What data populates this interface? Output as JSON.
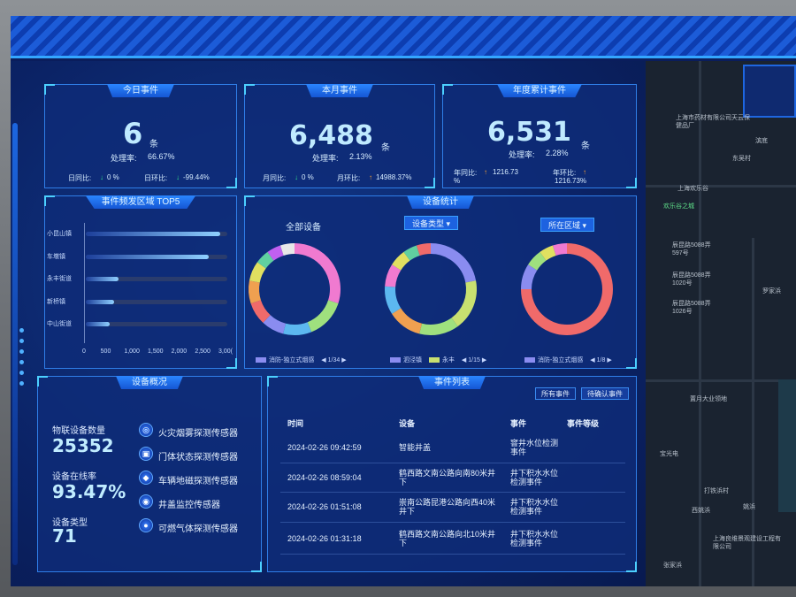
{
  "today": {
    "title": "今日事件",
    "value": "6",
    "unit": "条",
    "rate_label": "处理率:",
    "rate": "66.67%",
    "dod_label": "日同比:",
    "dod": "0 %",
    "mom_label": "日环比:",
    "mom": "-99.44%"
  },
  "month": {
    "title": "本月事件",
    "value": "6,488",
    "unit": "条",
    "rate_label": "处理率:",
    "rate": "2.13%",
    "yoy_label": "月同比:",
    "yoy": "0 %",
    "mom_label": "月环比:",
    "mom": "14988.37%"
  },
  "year": {
    "title": "年度累计事件",
    "value": "6,531",
    "unit": "条",
    "rate_label": "处理率:",
    "rate": "2.28%",
    "yoy_label": "年同比:",
    "yoy_l1": "1216.73",
    "yoy_l2": "%",
    "mom_label": "年环比:",
    "mom_l1": "1216.73%"
  },
  "top5": {
    "title": "事件频发区域 TOP5",
    "chart_data": {
      "type": "bar",
      "orientation": "horizontal",
      "categories": [
        "小昆山镇",
        "车墩镇",
        "永丰街道",
        "新桥镇",
        "中山街道"
      ],
      "values": [
        2850,
        2600,
        700,
        600,
        500
      ],
      "xlim": [
        0,
        3000
      ],
      "ticks": [
        "0",
        "500",
        "1,000",
        "1,500",
        "2,000",
        "2,500",
        "3,00("
      ]
    }
  },
  "devices_stats": {
    "title": "设备统计",
    "all_label": "全部设备",
    "type_dropdown": "设备类型",
    "area_dropdown": "所在区域",
    "chart_data": [
      {
        "type": "pie",
        "variant": "donut",
        "slices": [
          30,
          14,
          10,
          8,
          8,
          8,
          7,
          5,
          5,
          5
        ],
        "colors": [
          "#f07ad0",
          "#9fe07e",
          "#5cb8f0",
          "#8a8cf0",
          "#f06a6a",
          "#f0a050",
          "#e0e060",
          "#60d0a0",
          "#c060f0",
          "#e8e8e8"
        ]
      },
      {
        "type": "pie",
        "variant": "donut",
        "slices": [
          22,
          18,
          14,
          12,
          10,
          8,
          6,
          5,
          5
        ],
        "colors": [
          "#8a8cf0",
          "#c8e070",
          "#9fe07e",
          "#f0a050",
          "#5cb8f0",
          "#f07ad0",
          "#e0e060",
          "#60d0a0",
          "#f06a6a"
        ]
      },
      {
        "type": "pie",
        "variant": "donut",
        "slices": [
          75,
          9,
          6,
          5,
          5
        ],
        "colors": [
          "#f06a6a",
          "#8a8cf0",
          "#9fe07e",
          "#e0e060",
          "#f07ad0"
        ]
      }
    ],
    "legend1": {
      "label": "消防-独立式烟感",
      "page": "1/34"
    },
    "legend2": {
      "label1": "泗泾镇",
      "label2": "永丰",
      "page": "1/15"
    },
    "legend3": {
      "label": "消防-独立式烟感",
      "page": "1/8"
    }
  },
  "overview": {
    "title": "设备概况",
    "connected_label": "物联设备数量",
    "connected": "25352",
    "online_label": "设备在线率",
    "online": "93.47%",
    "types_label": "设备类型",
    "types": "71",
    "sensors": [
      "火灾烟雾探测传感器",
      "门体状态探测传感器",
      "车辆地磁探测传感器",
      "井盖监控传感器",
      "可燃气体探测传感器"
    ]
  },
  "events": {
    "title": "事件列表",
    "tab_all": "所有事件",
    "tab_pending": "待确认事件",
    "headers": [
      "时间",
      "设备",
      "事件",
      "事件等级"
    ],
    "rows": [
      {
        "time": "2024-02-26 09:42:59",
        "device": "智能井盖",
        "event": "窨井水位检测事件"
      },
      {
        "time": "2024-02-26 08:59:04",
        "device": "鹤西路文南公路向南80米井下",
        "event": "井下积水水位检测事件"
      },
      {
        "time": "2024-02-26 01:51:08",
        "device": "崇南公路昆港公路向西40米井下",
        "event": "井下积水水位检测事件"
      },
      {
        "time": "2024-02-26 01:31:18",
        "device": "鹤西路文南公路向北10米井下",
        "event": "井下积水水位检测事件"
      }
    ]
  },
  "map": {
    "labels": [
      "上海市药材有限公司天云保健品厂",
      "滨底",
      "东吴村",
      "上海欢乐谷",
      "欢乐谷之城",
      "辰昆路5088弄597号",
      "辰昆路5088弄1020号",
      "辰昆路5088弄1026号",
      "罗家浜",
      "置月大业领地",
      "宝光电",
      "打铁浜村",
      "西姚浜",
      "姚浜",
      "上海良维景观建设工程有限公司",
      "张家浜"
    ]
  }
}
